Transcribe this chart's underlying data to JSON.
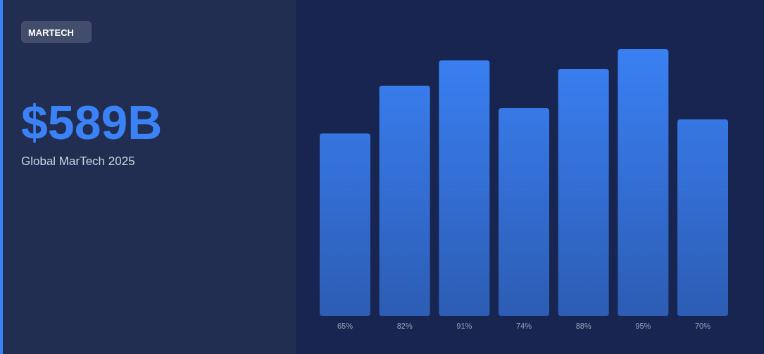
{
  "chart_data": {
    "type": "bar",
    "title": "$589B",
    "subtitle": "Global MarTech 2025",
    "annotations": [
      "MARTECH"
    ],
    "categories": [
      null,
      null,
      null,
      null,
      null,
      null,
      null
    ],
    "values": [
      65,
      82,
      91,
      74,
      88,
      95,
      70
    ],
    "value_labels": [
      "65%",
      "82%",
      "91%",
      "74%",
      "88%",
      "95%",
      "70%"
    ],
    "color": "#3b82f6"
  }
}
